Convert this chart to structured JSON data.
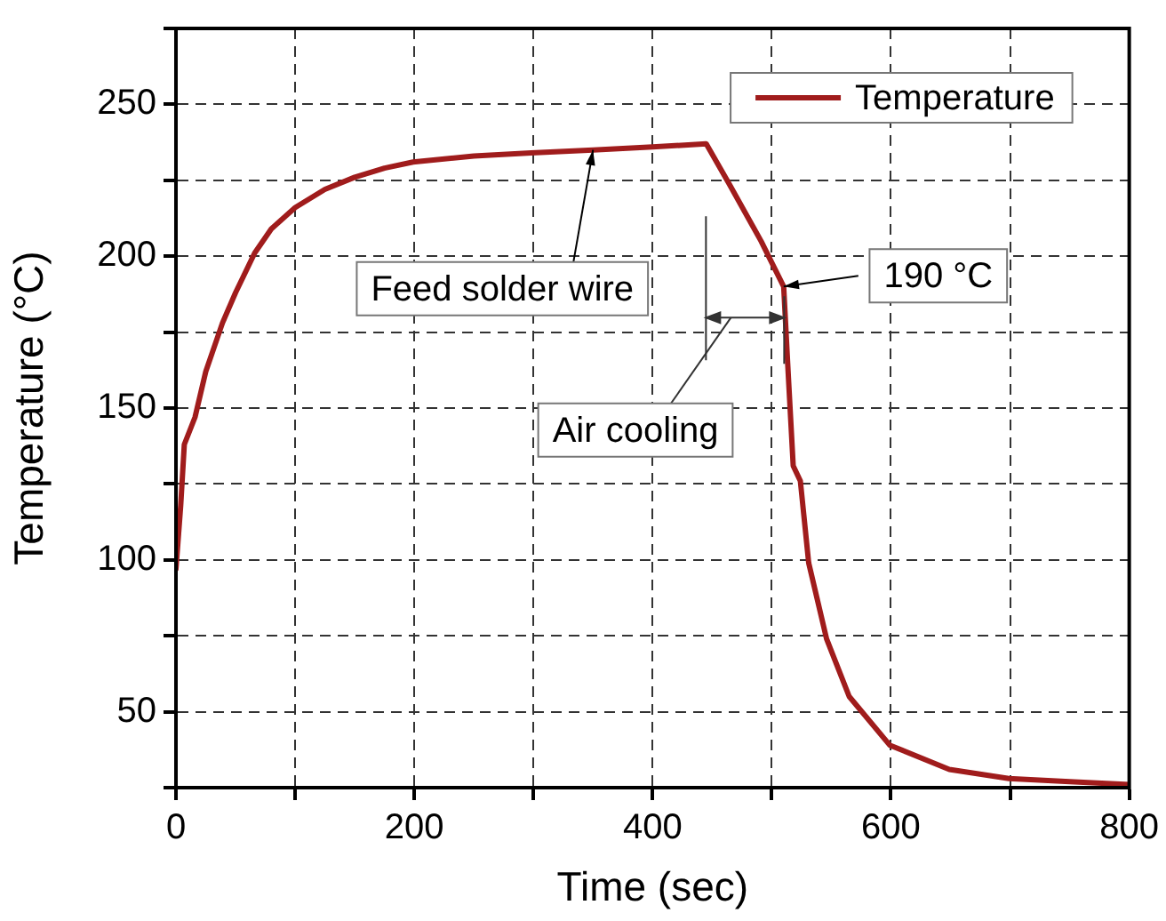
{
  "chart_data": {
    "type": "line",
    "xlabel": "Time (sec)",
    "ylabel": "Temperature (°C)",
    "xlim": [
      0,
      800
    ],
    "xticks": [
      0,
      {
        "value": 100,
        "label": null
      },
      200,
      {
        "value": 300,
        "label": null
      },
      400,
      {
        "value": 500,
        "label": null
      },
      600,
      {
        "value": 700,
        "label": null
      },
      800
    ],
    "ylim": [
      25,
      275
    ],
    "yticks": [
      {
        "value": 25,
        "label": null
      },
      50,
      {
        "value": 75,
        "label": null
      },
      100,
      {
        "value": 125,
        "label": null
      },
      150,
      {
        "value": 175,
        "label": null
      },
      200,
      {
        "value": 225,
        "label": null
      },
      250,
      {
        "value": 275,
        "label": null
      }
    ],
    "grid": true,
    "legend": "top right",
    "marker": "none",
    "line_style": "solid",
    "series": [
      {
        "name": "Temperature",
        "color": "#a01c1c",
        "x": [
          0,
          4,
          7,
          16,
          25,
          39,
          50,
          66,
          80,
          100,
          125,
          150,
          175,
          199,
          250,
          298,
          350,
          400,
          445,
          464,
          491,
          510,
          514,
          518,
          524,
          531,
          546,
          565,
          599,
          649,
          699,
          750,
          800
        ],
        "values": [
          97,
          118,
          138,
          147,
          162,
          178,
          188,
          201,
          209,
          216,
          222,
          226,
          229,
          231,
          233,
          234,
          235,
          236,
          237,
          224,
          205,
          190,
          160,
          131,
          126,
          99,
          74,
          55,
          39,
          31,
          28,
          27,
          26
        ]
      }
    ],
    "annotations": [
      {
        "text": "Feed solder wire",
        "x": 350,
        "y": 235
      },
      {
        "text": "190 °C",
        "x": 510,
        "y": 190
      },
      "Air cooling"
    ]
  }
}
